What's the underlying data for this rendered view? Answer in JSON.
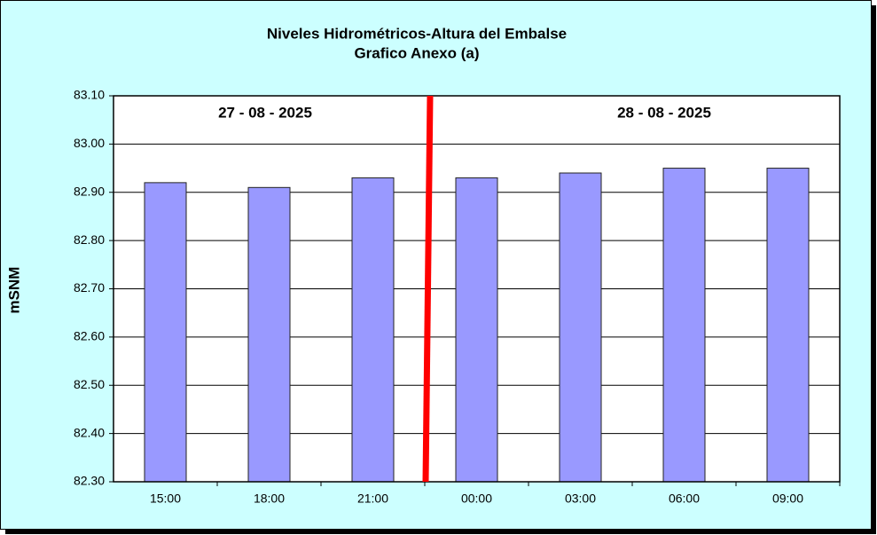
{
  "chart_data": {
    "type": "bar",
    "title": "Niveles Hidrométricos-Altura del Embalse",
    "subtitle": "Grafico Anexo (a)",
    "y_label": "mSNM",
    "annotations": [
      "27 - 08 - 2025",
      "28 - 08 - 2025"
    ],
    "categories": [
      "15:00",
      "18:00",
      "21:00",
      "00:00",
      "03:00",
      "06:00",
      "09:00"
    ],
    "values": [
      82.92,
      82.91,
      82.93,
      82.93,
      82.94,
      82.95,
      82.95
    ],
    "color": "#9999ff",
    "ylim": [
      82.3,
      83.1
    ],
    "yticks": [
      {
        "value": 82.3,
        "label": "82.30"
      },
      {
        "value": 82.4,
        "label": "82.40"
      },
      {
        "value": 82.5,
        "label": "82.50"
      },
      {
        "value": 82.6,
        "label": "82.60"
      },
      {
        "value": 82.7,
        "label": "82.70"
      },
      {
        "value": 82.8,
        "label": "82.80"
      },
      {
        "value": 82.9,
        "label": "82.90"
      },
      {
        "value": 83.0,
        "label": "83.00"
      },
      {
        "value": 83.1,
        "label": "83.10"
      }
    ],
    "grid": true
  }
}
